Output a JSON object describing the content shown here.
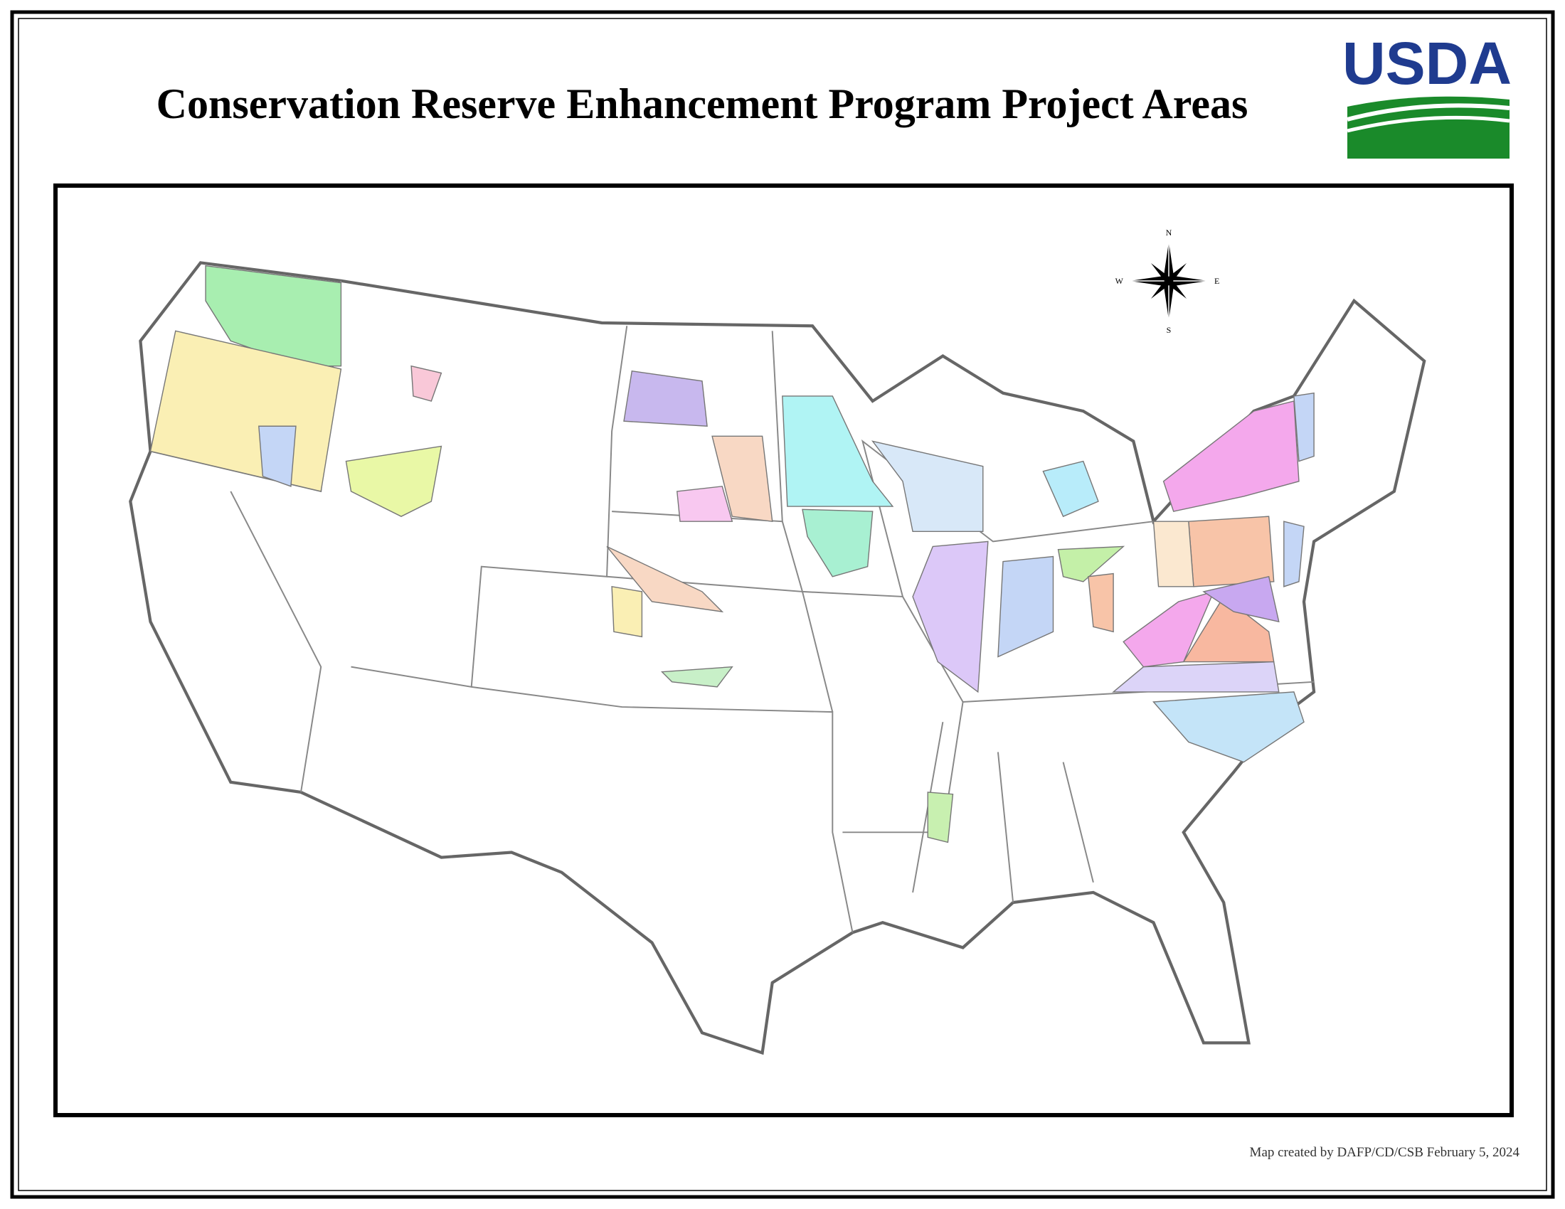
{
  "header": {
    "title": "Conservation Reserve Enhancement Program Project Areas",
    "logo": "USDA"
  },
  "map": {
    "compass": {
      "north": "N",
      "east": "E",
      "south": "S",
      "west": "W"
    }
  },
  "footer": {
    "credit": "Map created by DAFP/CD/CSB February 5, 2024"
  }
}
